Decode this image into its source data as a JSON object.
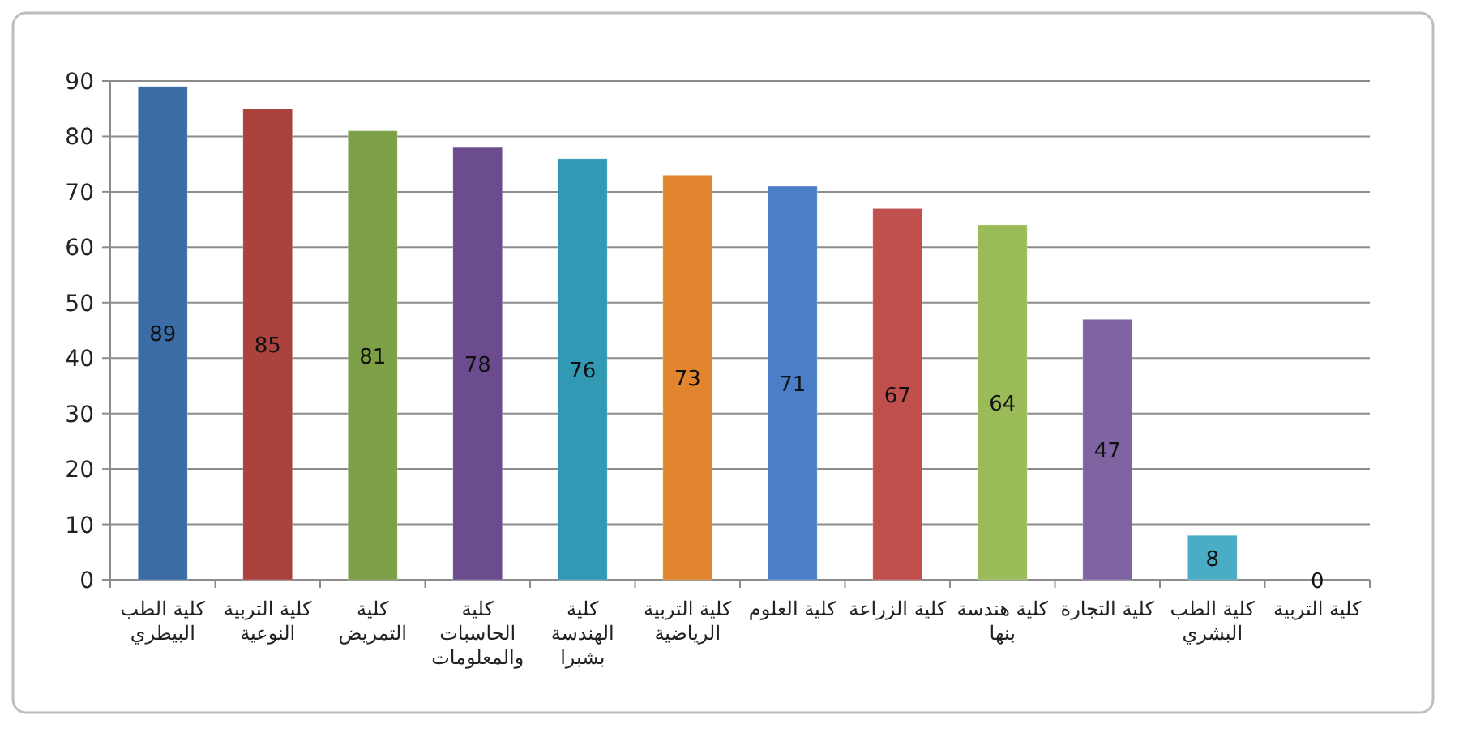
{
  "chart_data": {
    "type": "bar",
    "categories": [
      "كلية الطب البيطري",
      "كلية التربية النوعية",
      "كلية التمريض",
      "كلية الحاسبات والمعلومات",
      "كلية الهندسة بشبرا",
      "كلية التربية الرياضية",
      "كلية العلوم",
      "كلية الزراعة",
      "كلية هندسة بنها",
      "كلية التجارة",
      "كلية الطب البشري",
      "كلية التربية"
    ],
    "values": [
      89,
      85,
      81,
      78,
      76,
      73,
      71,
      67,
      64,
      47,
      8,
      0
    ],
    "colors": [
      "#3b6ca6",
      "#aa423e",
      "#7d9f46",
      "#6b4d8f",
      "#3199b4",
      "#e2852f",
      "#4a7fc7",
      "#c0504d",
      "#9bbb59",
      "#8064a2",
      "#4bacc6",
      "#f79646"
    ],
    "ylim": [
      0,
      90
    ],
    "yticks": [
      0,
      10,
      20,
      30,
      40,
      50,
      60,
      70,
      80,
      90
    ],
    "grid": "y",
    "data_labels": true
  }
}
